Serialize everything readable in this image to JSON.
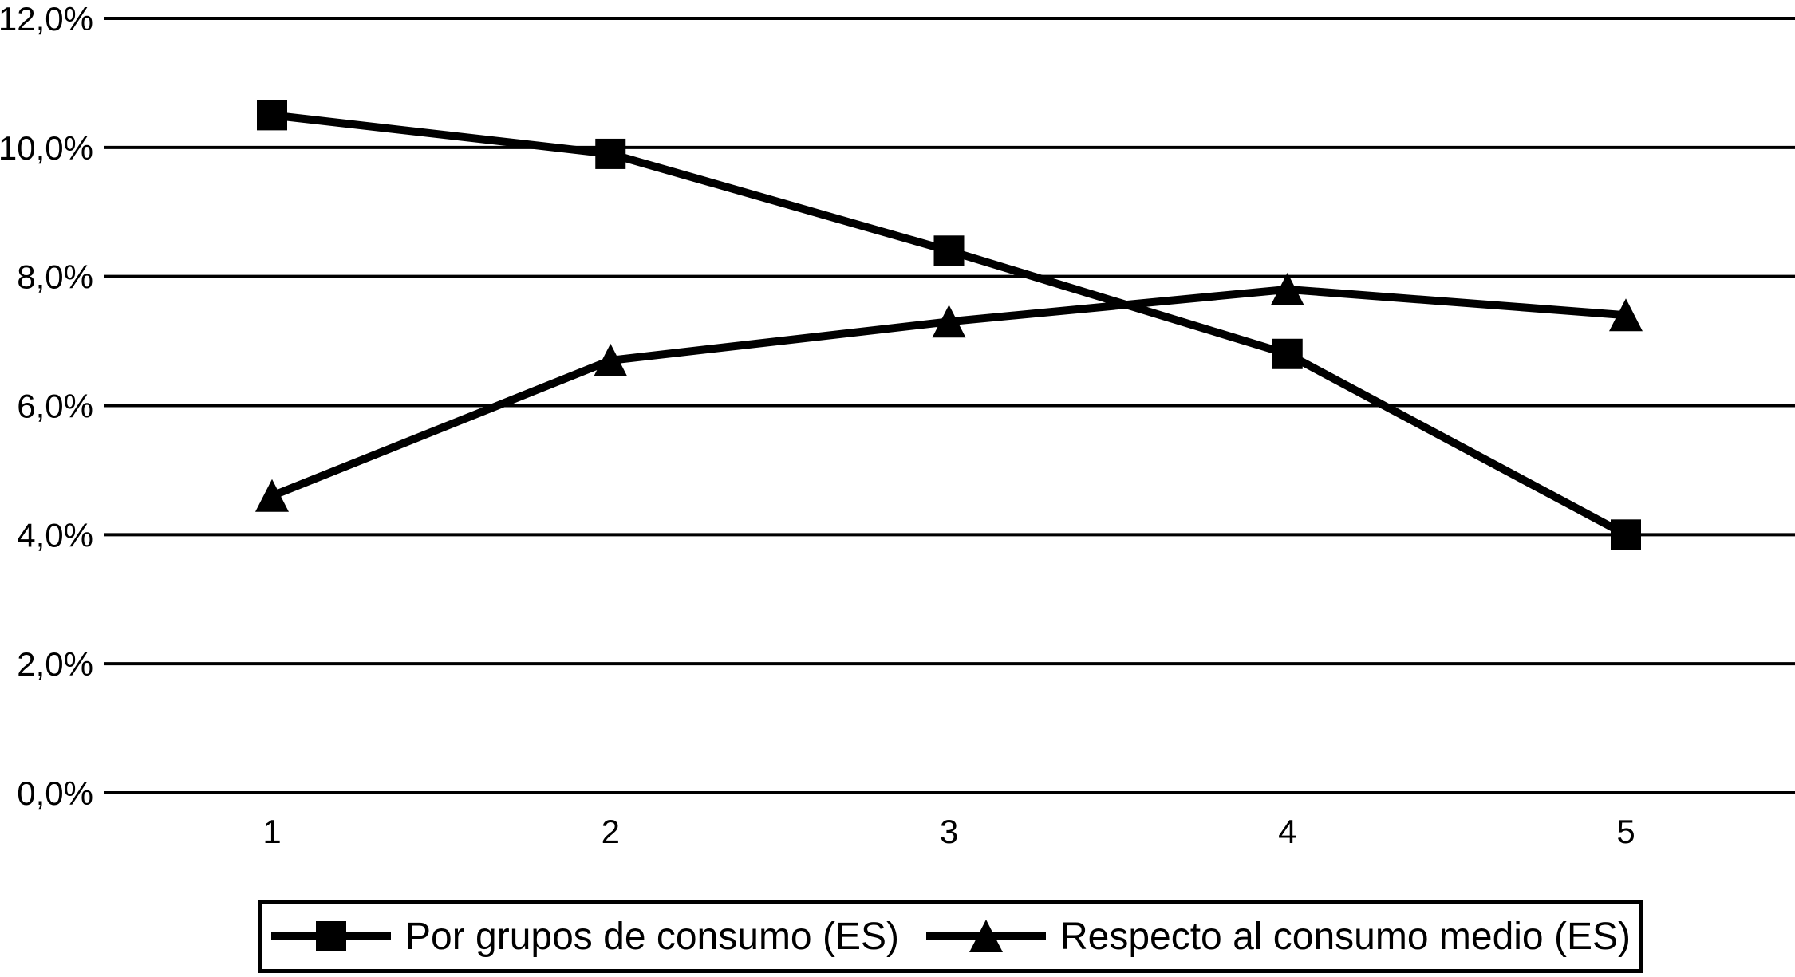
{
  "chart_data": {
    "type": "line",
    "title": "",
    "xlabel": "",
    "ylabel": "",
    "x": [
      1,
      2,
      3,
      4,
      5
    ],
    "x_tick_labels": [
      "1",
      "2",
      "3",
      "4",
      "5"
    ],
    "ylim": [
      0,
      12
    ],
    "y_ticks": [
      0,
      2,
      4,
      6,
      8,
      10,
      12
    ],
    "y_tick_labels": [
      "0,0%",
      "2,0%",
      "4,0%",
      "6,0%",
      "8,0%",
      "10,0%",
      "12,0%"
    ],
    "grid": "horizontal-only",
    "legend_position": "bottom-boxed",
    "background_color": "#ffffff",
    "line_color": "#000000",
    "series": [
      {
        "name": "Por grupos de consumo (ES)",
        "marker": "square",
        "color": "#000000",
        "values": [
          10.5,
          9.9,
          8.4,
          6.8,
          4.0
        ]
      },
      {
        "name": "Respecto al consumo medio (ES)",
        "marker": "triangle",
        "color": "#000000",
        "values": [
          4.6,
          6.7,
          7.3,
          7.8,
          7.4
        ]
      }
    ]
  }
}
